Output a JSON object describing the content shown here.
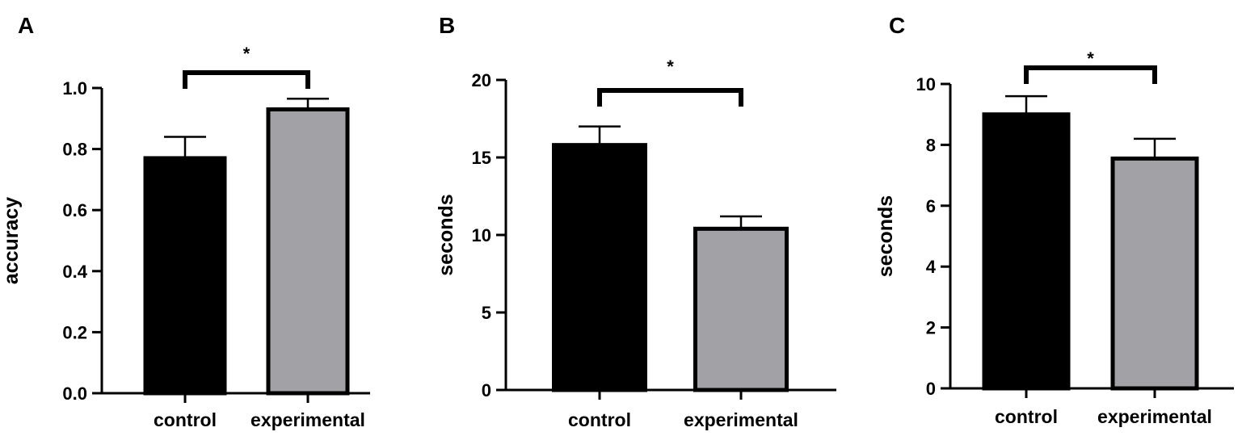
{
  "chart_data": [
    {
      "panel": "A",
      "type": "bar",
      "categories": [
        "control",
        "experimental"
      ],
      "values": [
        0.77,
        0.93
      ],
      "errors": [
        0.07,
        0.035
      ],
      "colors": [
        "#000000",
        "#a2a1a6"
      ],
      "ylabel": "accuracy",
      "xlabel": "",
      "ylim": [
        0,
        1.0
      ],
      "yticks": [
        "0.0",
        "0.2",
        "0.4",
        "0.6",
        "0.8",
        "1.0"
      ],
      "significance": {
        "label": "*",
        "between": [
          "control",
          "experimental"
        ]
      }
    },
    {
      "panel": "B",
      "type": "bar",
      "categories": [
        "control",
        "experimental"
      ],
      "values": [
        15.8,
        10.4
      ],
      "errors": [
        1.2,
        0.8
      ],
      "colors": [
        "#000000",
        "#a2a1a6"
      ],
      "ylabel": "seconds",
      "xlabel": "",
      "ylim": [
        0,
        20
      ],
      "yticks": [
        "0",
        "5",
        "10",
        "15",
        "20"
      ],
      "significance": {
        "label": "*",
        "between": [
          "control",
          "experimental"
        ]
      }
    },
    {
      "panel": "C",
      "type": "bar",
      "categories": [
        "control",
        "experimental"
      ],
      "values": [
        9.0,
        7.55
      ],
      "errors": [
        0.6,
        0.65
      ],
      "colors": [
        "#000000",
        "#a2a1a6"
      ],
      "ylabel": "seconds",
      "xlabel": "",
      "ylim": [
        0,
        10
      ],
      "yticks": [
        "0",
        "2",
        "4",
        "6",
        "8",
        "10"
      ],
      "significance": {
        "label": "*",
        "between": [
          "control",
          "experimental"
        ]
      }
    }
  ]
}
